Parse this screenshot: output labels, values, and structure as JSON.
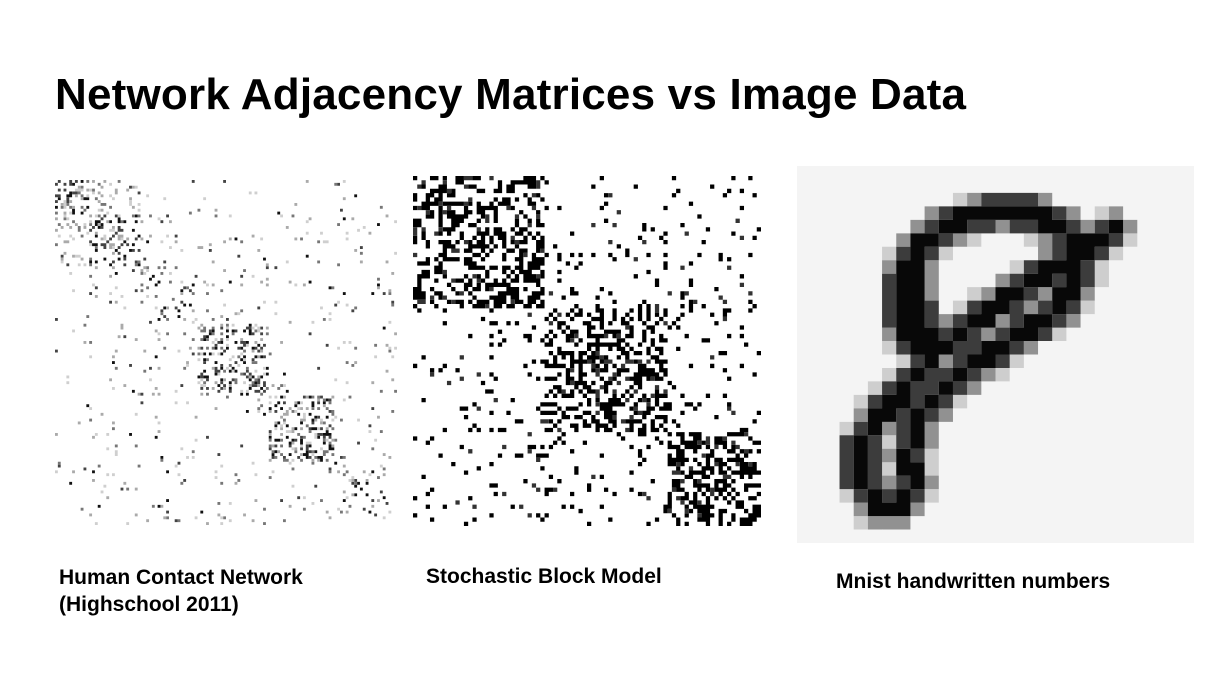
{
  "slide": {
    "title": "Network Adjacency Matrices vs Image Data"
  },
  "panels": [
    {
      "id": "contact",
      "caption_lines": [
        "Human Contact Network",
        "(Highschool 2011)"
      ],
      "image": "adjacency-matrix-heatmap"
    },
    {
      "id": "sbm",
      "caption_lines": [
        "Stochastic Block Model"
      ],
      "image": "block-structured-adjacency-matrix"
    },
    {
      "id": "mnist",
      "caption_lines": [
        "Mnist handwritten numbers"
      ],
      "image": "handwritten-digit-8"
    }
  ]
}
